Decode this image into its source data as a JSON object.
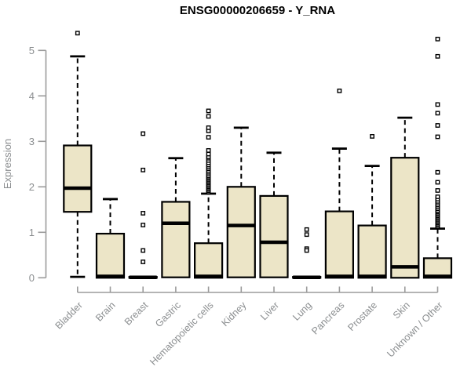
{
  "title": "ENSG00000206659 - Y_RNA",
  "chart_data": {
    "type": "boxplot",
    "title": "ENSG00000206659 - Y_RNA",
    "xlabel": "",
    "ylabel": "Expression",
    "ylim": [
      0,
      5.45
    ],
    "yticks": [
      0,
      1,
      2,
      3,
      4,
      5
    ],
    "grid": false,
    "legend": "none",
    "colors": {
      "box_fill": "#ece5c7",
      "box_stroke": "#000000",
      "median": "#000000",
      "whisker": "#000000",
      "outlier_stroke": "#000000",
      "outlier_fill": "#ffffff",
      "axis_line": "#9b9b9b",
      "text_gray": "#8b8e90",
      "title_color": "#000000",
      "background": "#ffffff"
    },
    "categories": [
      "Bladder",
      "Brain",
      "Breast",
      "Gastric",
      "Hematopoietic cells",
      "Kidney",
      "Liver",
      "Lung",
      "Pancreas",
      "Prostate",
      "Skin",
      "Unknown / Other"
    ],
    "series": [
      {
        "category": "Bladder",
        "whisker_low": 0.02,
        "q1": 1.45,
        "median": 1.97,
        "q3": 2.91,
        "whisker_high": 4.87,
        "outliers": [
          5.38
        ]
      },
      {
        "category": "Brain",
        "whisker_low": 0,
        "q1": 0,
        "median": 0.03,
        "q3": 0.97,
        "whisker_high": 1.73,
        "outliers": []
      },
      {
        "category": "Breast",
        "whisker_low": 0,
        "q1": 0,
        "median": 0.01,
        "q3": 0.02,
        "whisker_high": 0.02,
        "outliers": [
          3.17,
          2.37,
          1.42,
          1.16,
          0.6,
          0.35
        ]
      },
      {
        "category": "Gastric",
        "whisker_low": 0.01,
        "q1": 0.01,
        "median": 1.2,
        "q3": 1.67,
        "whisker_high": 2.63,
        "outliers": []
      },
      {
        "category": "Hematopoietic cells",
        "whisker_low": 0,
        "q1": 0,
        "median": 0.03,
        "q3": 0.76,
        "whisker_high": 1.85,
        "outliers": [
          1.88,
          1.91,
          1.94,
          1.97,
          2.0,
          2.03,
          2.06,
          2.09,
          2.12,
          2.15,
          2.18,
          2.21,
          2.24,
          2.28,
          2.32,
          2.36,
          2.4,
          2.44,
          2.48,
          2.53,
          2.58,
          2.63,
          2.66,
          2.72,
          2.8,
          3.09,
          3.23,
          3.3,
          3.55,
          3.67
        ]
      },
      {
        "category": "Kidney",
        "whisker_low": 0.01,
        "q1": 0.01,
        "median": 1.15,
        "q3": 2.0,
        "whisker_high": 3.3,
        "outliers": []
      },
      {
        "category": "Liver",
        "whisker_low": 0.01,
        "q1": 0.01,
        "median": 0.78,
        "q3": 1.8,
        "whisker_high": 2.75,
        "outliers": []
      },
      {
        "category": "Lung",
        "whisker_low": 0,
        "q1": 0,
        "median": 0.01,
        "q3": 0.02,
        "whisker_high": 0.02,
        "outliers": [
          1.06,
          0.95,
          0.64,
          0.6
        ]
      },
      {
        "category": "Pancreas",
        "whisker_low": 0,
        "q1": 0,
        "median": 0.03,
        "q3": 1.46,
        "whisker_high": 2.84,
        "outliers": [
          4.11
        ]
      },
      {
        "category": "Prostate",
        "whisker_low": 0,
        "q1": 0,
        "median": 0.03,
        "q3": 1.15,
        "whisker_high": 2.46,
        "outliers": [
          3.11
        ]
      },
      {
        "category": "Skin",
        "whisker_low": 0,
        "q1": 0,
        "median": 0.24,
        "q3": 2.64,
        "whisker_high": 3.52,
        "outliers": []
      },
      {
        "category": "Unknown / Other",
        "whisker_low": 0,
        "q1": 0,
        "median": 0.03,
        "q3": 0.43,
        "whisker_high": 1.08,
        "outliers": [
          1.12,
          1.15,
          1.18,
          1.21,
          1.24,
          1.27,
          1.3,
          1.33,
          1.36,
          1.39,
          1.42,
          1.45,
          1.48,
          1.52,
          1.56,
          1.6,
          1.64,
          1.68,
          1.73,
          1.78,
          1.92,
          2.1,
          2.32,
          3.1,
          3.35,
          3.62,
          3.81,
          4.87,
          5.25
        ]
      }
    ]
  }
}
